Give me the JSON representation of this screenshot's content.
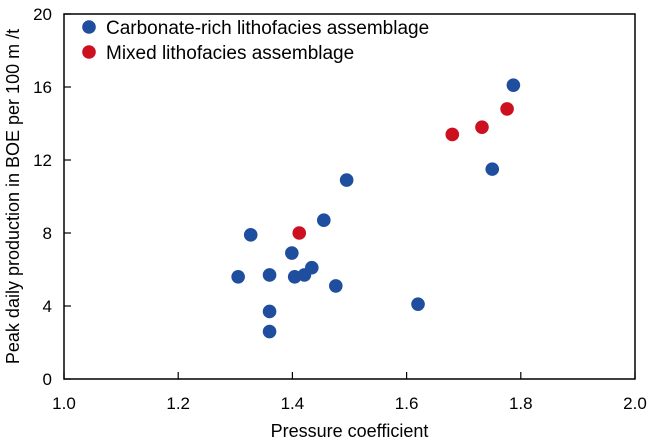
{
  "chart_data": {
    "type": "scatter",
    "title": "",
    "xlabel": "Pressure coefficient",
    "ylabel": "Peak daily production in BOE per 100 m /t",
    "xlim": [
      1.0,
      2.0
    ],
    "ylim": [
      0,
      20
    ],
    "xticks": [
      "1.0",
      "1.2",
      "1.4",
      "1.6",
      "1.8",
      "2.0"
    ],
    "yticks": [
      "0",
      "4",
      "8",
      "12",
      "16",
      "20"
    ],
    "grid": false,
    "legend_position": "top-left",
    "series": [
      {
        "name": "Carbonate-rich lithofacies assemblage",
        "color": "#1f4e9e",
        "points": [
          {
            "x": 1.305,
            "y": 5.6
          },
          {
            "x": 1.327,
            "y": 7.9
          },
          {
            "x": 1.36,
            "y": 5.7
          },
          {
            "x": 1.36,
            "y": 3.7
          },
          {
            "x": 1.36,
            "y": 2.6
          },
          {
            "x": 1.399,
            "y": 6.9
          },
          {
            "x": 1.404,
            "y": 5.6
          },
          {
            "x": 1.421,
            "y": 5.7
          },
          {
            "x": 1.434,
            "y": 6.1
          },
          {
            "x": 1.455,
            "y": 8.7
          },
          {
            "x": 1.476,
            "y": 5.1
          },
          {
            "x": 1.495,
            "y": 10.9
          },
          {
            "x": 1.62,
            "y": 4.1
          },
          {
            "x": 1.75,
            "y": 11.5
          },
          {
            "x": 1.787,
            "y": 16.1
          }
        ]
      },
      {
        "name": "Mixed lithofacies assemblage",
        "color": "#cc1020",
        "points": [
          {
            "x": 1.412,
            "y": 8.0
          },
          {
            "x": 1.68,
            "y": 13.4
          },
          {
            "x": 1.732,
            "y": 13.8
          },
          {
            "x": 1.776,
            "y": 14.8
          }
        ]
      }
    ]
  }
}
